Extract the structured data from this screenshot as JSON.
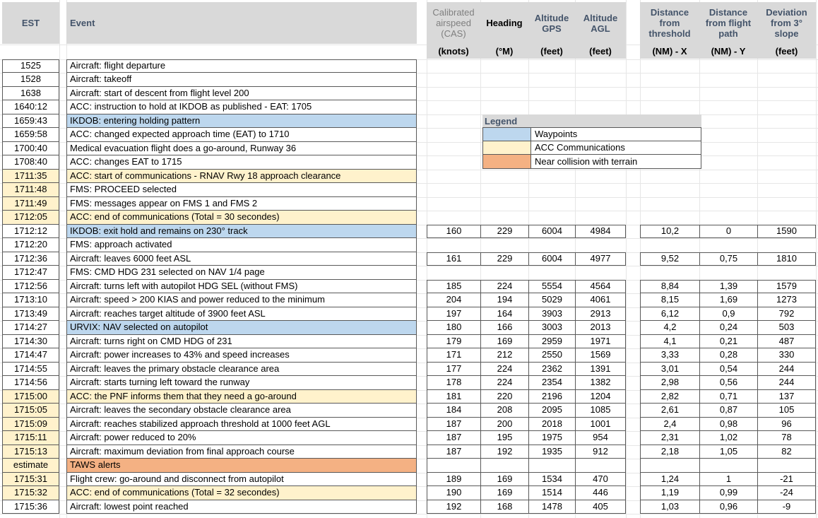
{
  "colors": {
    "header_fill": "#D9D9D9",
    "header_text": "#44546A",
    "muted_text": "#7F7F7F",
    "border": "#595959",
    "gridline": "#E6E6E6",
    "waypoint_fill": "#BDD7EE",
    "acc_fill": "#FFF2CC",
    "terrain_fill": "#F4B183"
  },
  "header": {
    "est_label": "EST",
    "event_label": "Event",
    "left_columns": [
      {
        "name": "cas",
        "title": "Calibrated airspeed (CAS)",
        "unit": "(knots)",
        "style": "muted"
      },
      {
        "name": "heading",
        "title": "Heading",
        "unit": "(°M)",
        "style": "black"
      },
      {
        "name": "altitude-gps",
        "title": "Altitude GPS",
        "unit": "(feet)",
        "style": "navy"
      },
      {
        "name": "altitude-agl",
        "title": "Altitude AGL",
        "unit": "(feet)",
        "style": "navy"
      }
    ],
    "right_columns": [
      {
        "name": "distance-threshold",
        "title": "Distance from threshold",
        "unit": "(NM) - X",
        "style": "navy"
      },
      {
        "name": "distance-flightpath",
        "title": "Distance from flight path",
        "unit": "(NM) - Y",
        "style": "navy"
      },
      {
        "name": "deviation-slope",
        "title": "Deviation from 3° slope",
        "unit": "(feet)",
        "style": "navy"
      }
    ]
  },
  "legend": {
    "title": "Legend",
    "items": [
      {
        "label": "Waypoints",
        "key": "waypoint"
      },
      {
        "label": "ACC Communications",
        "key": "acc"
      },
      {
        "label": "Near collision with terrain",
        "key": "terrain"
      }
    ]
  },
  "rows": [
    {
      "est": "1525",
      "event": "Aircraft: flight departure",
      "event_hl": null,
      "est_hl": false,
      "data": null
    },
    {
      "est": "1528",
      "event": "Aircraft: takeoff",
      "event_hl": null,
      "est_hl": false,
      "data": null
    },
    {
      "est": "1638",
      "event": "Aircraft: start of descent from flight level 200",
      "event_hl": null,
      "est_hl": false,
      "data": null
    },
    {
      "est": "1640:12",
      "event": "ACC: instruction to hold at IKDOB as published - EAT: 1705",
      "event_hl": null,
      "est_hl": false,
      "data": null
    },
    {
      "est": "1659:43",
      "event": "IKDOB: entering holding pattern",
      "event_hl": "waypoint",
      "est_hl": false,
      "data": null
    },
    {
      "est": "1659:58",
      "event": "ACC: changed expected approach time (EAT) to 1710",
      "event_hl": null,
      "est_hl": false,
      "data": null
    },
    {
      "est": "1700:40",
      "event": "Medical evacuation flight does a go-around, Runway 36",
      "event_hl": null,
      "est_hl": false,
      "data": null
    },
    {
      "est": "1708:40",
      "event": "ACC: changes EAT to 1715",
      "event_hl": null,
      "est_hl": false,
      "data": null
    },
    {
      "est": "1711:35",
      "event": "ACC: start of communications -  RNAV Rwy 18 approach clearance",
      "event_hl": "acc",
      "est_hl": true,
      "data": null
    },
    {
      "est": "1711:48",
      "event": "FMS: PROCEED selected",
      "event_hl": null,
      "est_hl": true,
      "data": null
    },
    {
      "est": "1711:49",
      "event": "FMS: messages appear on FMS 1 and FMS 2",
      "event_hl": null,
      "est_hl": true,
      "data": null
    },
    {
      "est": "1712:05",
      "event": "ACC: end of communications (Total = 30 secondes)",
      "event_hl": "acc",
      "est_hl": true,
      "data": null
    },
    {
      "est": "1712:12",
      "event": "IKDOB: exit hold and remains on 230° track",
      "event_hl": "waypoint",
      "est_hl": false,
      "data": [
        "160",
        "229",
        "6004",
        "4984",
        "10,2",
        "0",
        "1590"
      ]
    },
    {
      "est": "1712:20",
      "event": "FMS: approach activated",
      "event_hl": null,
      "est_hl": false,
      "data": null
    },
    {
      "est": "1712:36",
      "event": "Aircraft: leaves 6000 feet ASL",
      "event_hl": null,
      "est_hl": false,
      "data": [
        "161",
        "229",
        "6004",
        "4977",
        "9,52",
        "0,75",
        "1810"
      ]
    },
    {
      "est": "1712:47",
      "event": "FMS: CMD HDG 231 selected on NAV 1/4 page",
      "event_hl": null,
      "est_hl": false,
      "data": null
    },
    {
      "est": "1712:56",
      "event": "Aircraft: turns left with autopilot HDG SEL (without FMS)",
      "event_hl": null,
      "est_hl": false,
      "data": [
        "185",
        "224",
        "5554",
        "4564",
        "8,84",
        "1,39",
        "1579"
      ]
    },
    {
      "est": "1713:10",
      "event": "Aircraft: speed > 200 KIAS and power reduced to the minimum",
      "event_hl": null,
      "est_hl": false,
      "data": [
        "204",
        "194",
        "5029",
        "4061",
        "8,15",
        "1,69",
        "1273"
      ]
    },
    {
      "est": "1713:49",
      "event": "Aircraft: reaches target altitude of 3900 feet ASL",
      "event_hl": null,
      "est_hl": false,
      "data": [
        "197",
        "164",
        "3903",
        "2913",
        "6,12",
        "0,9",
        "792"
      ]
    },
    {
      "est": "1714:27",
      "event": "URVIX: NAV selected on autopilot",
      "event_hl": "waypoint",
      "est_hl": false,
      "data": [
        "180",
        "166",
        "3003",
        "2013",
        "4,2",
        "0,24",
        "503"
      ]
    },
    {
      "est": "1714:30",
      "event": "Aircraft: turns right on CMD HDG of 231",
      "event_hl": null,
      "est_hl": false,
      "data": [
        "179",
        "169",
        "2959",
        "1971",
        "4,1",
        "0,21",
        "487"
      ]
    },
    {
      "est": "1714:47",
      "event": "Aircraft: power increases to 43% and speed increases",
      "event_hl": null,
      "est_hl": false,
      "data": [
        "171",
        "212",
        "2550",
        "1569",
        "3,33",
        "0,28",
        "330"
      ]
    },
    {
      "est": "1714:55",
      "event": "Aircraft: leaves the primary obstacle clearance area",
      "event_hl": null,
      "est_hl": false,
      "data": [
        "177",
        "224",
        "2362",
        "1391",
        "3,01",
        "0,54",
        "244"
      ]
    },
    {
      "est": "1714:56",
      "event": "Aircraft: starts turning left toward the runway",
      "event_hl": null,
      "est_hl": false,
      "data": [
        "178",
        "224",
        "2354",
        "1382",
        "2,98",
        "0,56",
        "244"
      ]
    },
    {
      "est": "1715:00",
      "event": "ACC: the PNF informs them that they need a go-around",
      "event_hl": "acc",
      "est_hl": true,
      "data": [
        "181",
        "220",
        "2196",
        "1204",
        "2,82",
        "0,71",
        "137"
      ]
    },
    {
      "est": "1715:05",
      "event": "Aircraft: leaves the secondary obstacle clearance area",
      "event_hl": null,
      "est_hl": true,
      "data": [
        "184",
        "208",
        "2095",
        "1085",
        "2,61",
        "0,87",
        "105"
      ]
    },
    {
      "est": "1715:09",
      "event": "Aircraft: reaches stabilized approach threshold at 1000 feet AGL",
      "event_hl": null,
      "est_hl": true,
      "data": [
        "187",
        "200",
        "2018",
        "1001",
        "2,4",
        "0,98",
        "96"
      ]
    },
    {
      "est": "1715:11",
      "event": "Aircraft: power reduced to 20%",
      "event_hl": null,
      "est_hl": true,
      "data": [
        "187",
        "195",
        "1975",
        "954",
        "2,31",
        "1,02",
        "78"
      ]
    },
    {
      "est": "1715:13",
      "event": "Aircraft: maximum deviation from final approach course",
      "event_hl": null,
      "est_hl": true,
      "data": [
        "187",
        "192",
        "1935",
        "912",
        "2,18",
        "1,05",
        "82"
      ]
    },
    {
      "est": "estimate",
      "event": "TAWS alerts",
      "event_hl": "terrain",
      "est_hl": true,
      "data": [
        "",
        "",
        "",
        "",
        "",
        "",
        ""
      ]
    },
    {
      "est": "1715:31",
      "event": "Flight crew: go-around and disconnect from autopilot",
      "event_hl": null,
      "est_hl": true,
      "data": [
        "189",
        "169",
        "1534",
        "470",
        "1,24",
        "1",
        "-21"
      ]
    },
    {
      "est": "1715:32",
      "event": "ACC: end of communications (Total = 32 secondes)",
      "event_hl": "acc",
      "est_hl": true,
      "data": [
        "190",
        "169",
        "1514",
        "446",
        "1,19",
        "0,99",
        "-24"
      ]
    },
    {
      "est": "1715:36",
      "event": "Aircraft: lowest point reached",
      "event_hl": null,
      "est_hl": false,
      "data": [
        "192",
        "168",
        "1478",
        "405",
        "1,03",
        "0,96",
        "-9"
      ]
    }
  ]
}
